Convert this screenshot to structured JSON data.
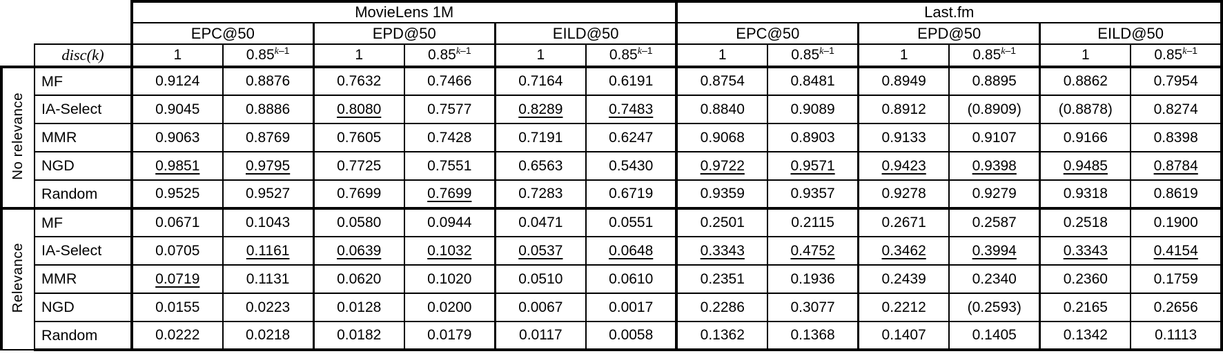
{
  "app": {
    "background_color": "#ffffff",
    "text_color": "#000000",
    "border_color": "#000000"
  },
  "table": {
    "dataset_headers": [
      "MovieLens 1M",
      "Last.fm"
    ],
    "metric_headers": [
      "EPC@50",
      "EPD@50",
      "EILD@50"
    ],
    "disc": {
      "label": "disc(k)",
      "plain": "1",
      "decay_base": "0.85",
      "decay_sup_italic": "k",
      "decay_sup_rest": "–1"
    },
    "groups": [
      {
        "label": "No relevance",
        "rows": [
          {
            "method": "MF",
            "values": [
              "0.9124",
              "0.8876",
              "0.7632",
              "0.7466",
              "0.7164",
              "0.6191",
              "0.8754",
              "0.8481",
              "0.8949",
              "0.8895",
              "0.8862",
              "0.7954"
            ],
            "underlined": []
          },
          {
            "method": "IA-Select",
            "values": [
              "0.9045",
              "0.8886",
              "0.8080",
              "0.7577",
              "0.8289",
              "0.7483",
              "0.8840",
              "0.9089",
              "0.8912",
              "(0.8909)",
              "(0.8878)",
              "0.8274"
            ],
            "underlined": [
              2,
              4,
              5
            ]
          },
          {
            "method": "MMR",
            "values": [
              "0.9063",
              "0.8769",
              "0.7605",
              "0.7428",
              "0.7191",
              "0.6247",
              "0.9068",
              "0.8903",
              "0.9133",
              "0.9107",
              "0.9166",
              "0.8398"
            ],
            "underlined": []
          },
          {
            "method": "NGD",
            "values": [
              "0.9851",
              "0.9795",
              "0.7725",
              "0.7551",
              "0.6563",
              "0.5430",
              "0.9722",
              "0.9571",
              "0.9423",
              "0.9398",
              "0.9485",
              "0.8784"
            ],
            "underlined": [
              0,
              1,
              6,
              7,
              8,
              9,
              10,
              11
            ]
          },
          {
            "method": "Random",
            "values": [
              "0.9525",
              "0.9527",
              "0.7699",
              "0.7699",
              "0.7283",
              "0.6719",
              "0.9359",
              "0.9357",
              "0.9278",
              "0.9279",
              "0.9318",
              "0.8619"
            ],
            "underlined": [
              3
            ]
          }
        ]
      },
      {
        "label": "Relevance",
        "rows": [
          {
            "method": "MF",
            "values": [
              "0.0671",
              "0.1043",
              "0.0580",
              "0.0944",
              "0.0471",
              "0.0551",
              "0.2501",
              "0.2115",
              "0.2671",
              "0.2587",
              "0.2518",
              "0.1900"
            ],
            "underlined": []
          },
          {
            "method": "IA-Select",
            "values": [
              "0.0705",
              "0.1161",
              "0.0639",
              "0.1032",
              "0.0537",
              "0.0648",
              "0.3343",
              "0.4752",
              "0.3462",
              "0.3994",
              "0.3343",
              "0.4154"
            ],
            "underlined": [
              1,
              2,
              3,
              4,
              5,
              6,
              7,
              8,
              9,
              10,
              11
            ]
          },
          {
            "method": "MMR",
            "values": [
              "0.0719",
              "0.1131",
              "0.0620",
              "0.1020",
              "0.0510",
              "0.0610",
              "0.2351",
              "0.1936",
              "0.2439",
              "0.2340",
              "0.2360",
              "0.1759"
            ],
            "underlined": [
              0
            ]
          },
          {
            "method": "NGD",
            "values": [
              "0.0155",
              "0.0223",
              "0.0128",
              "0.0200",
              "0.0067",
              "0.0017",
              "0.2286",
              "0.3077",
              "0.2212",
              "(0.2593)",
              "0.2165",
              "0.2656"
            ],
            "underlined": []
          },
          {
            "method": "Random",
            "values": [
              "0.0222",
              "0.0218",
              "0.0182",
              "0.0179",
              "0.0117",
              "0.0058",
              "0.1362",
              "0.1368",
              "0.1407",
              "0.1405",
              "0.1342",
              "0.1113"
            ],
            "underlined": []
          }
        ]
      }
    ]
  }
}
